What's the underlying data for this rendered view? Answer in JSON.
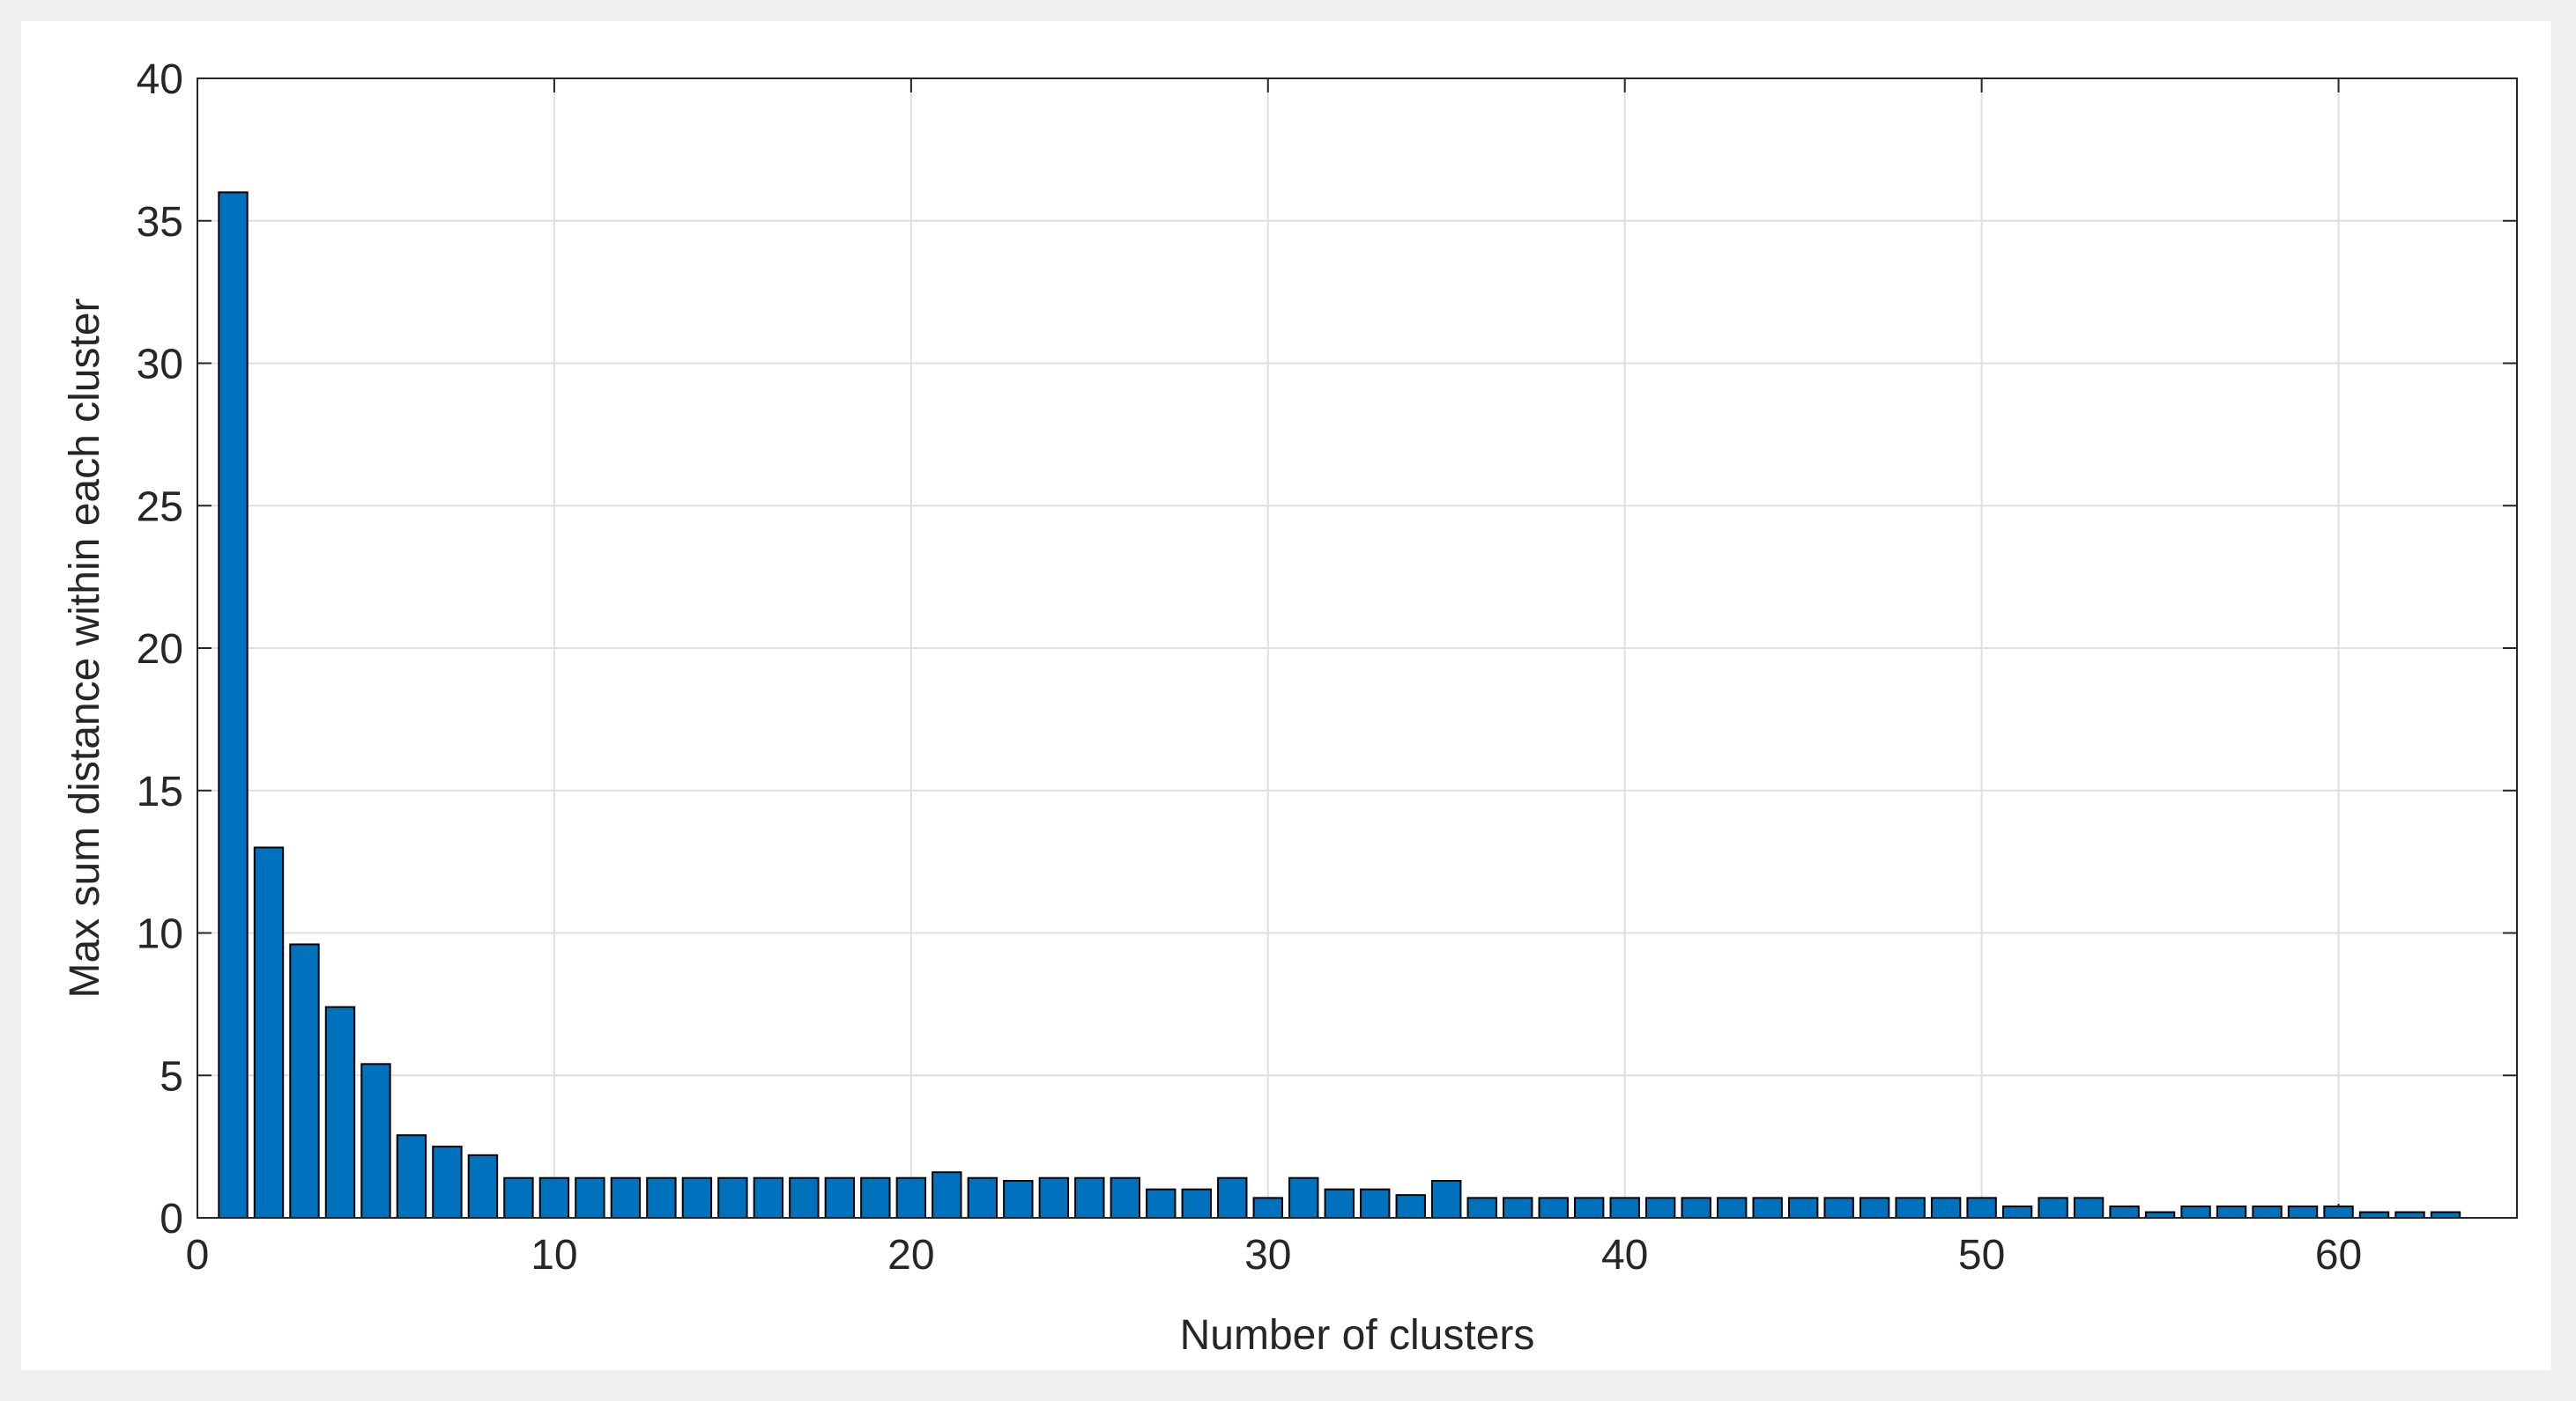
{
  "chart_data": {
    "type": "bar",
    "xlabel": "Number of clusters",
    "ylabel": "Max sum distance within each cluster",
    "x": [
      1,
      2,
      3,
      4,
      5,
      6,
      7,
      8,
      9,
      10,
      11,
      12,
      13,
      14,
      15,
      16,
      17,
      18,
      19,
      20,
      21,
      22,
      23,
      24,
      25,
      26,
      27,
      28,
      29,
      30,
      31,
      32,
      33,
      34,
      35,
      36,
      37,
      38,
      39,
      40,
      41,
      42,
      43,
      44,
      45,
      46,
      47,
      48,
      49,
      50,
      51,
      52,
      53,
      54,
      55,
      56,
      57,
      58,
      59,
      60,
      61,
      62,
      63
    ],
    "values": [
      36,
      13,
      9.6,
      7.4,
      5.4,
      2.9,
      2.5,
      2.2,
      1.4,
      1.4,
      1.4,
      1.4,
      1.4,
      1.4,
      1.4,
      1.4,
      1.4,
      1.4,
      1.4,
      1.4,
      1.6,
      1.4,
      1.3,
      1.4,
      1.4,
      1.4,
      1.0,
      1.0,
      1.4,
      0.7,
      1.4,
      1.0,
      1.0,
      0.8,
      1.3,
      0.7,
      0.7,
      0.7,
      0.7,
      0.7,
      0.7,
      0.7,
      0.7,
      0.7,
      0.7,
      0.7,
      0.7,
      0.7,
      0.7,
      0.7,
      0.4,
      0.7,
      0.7,
      0.4,
      0.2,
      0.4,
      0.4,
      0.4,
      0.4,
      0.4,
      0.2,
      0.2,
      0.2
    ],
    "color": "#0072bd",
    "xlim": [
      0,
      65
    ],
    "xticks": [
      0,
      10,
      20,
      30,
      40,
      50,
      60
    ],
    "ylim": [
      0,
      40
    ],
    "yticks": [
      0,
      5,
      10,
      15,
      20,
      25,
      30,
      35,
      40
    ],
    "grid": true
  }
}
